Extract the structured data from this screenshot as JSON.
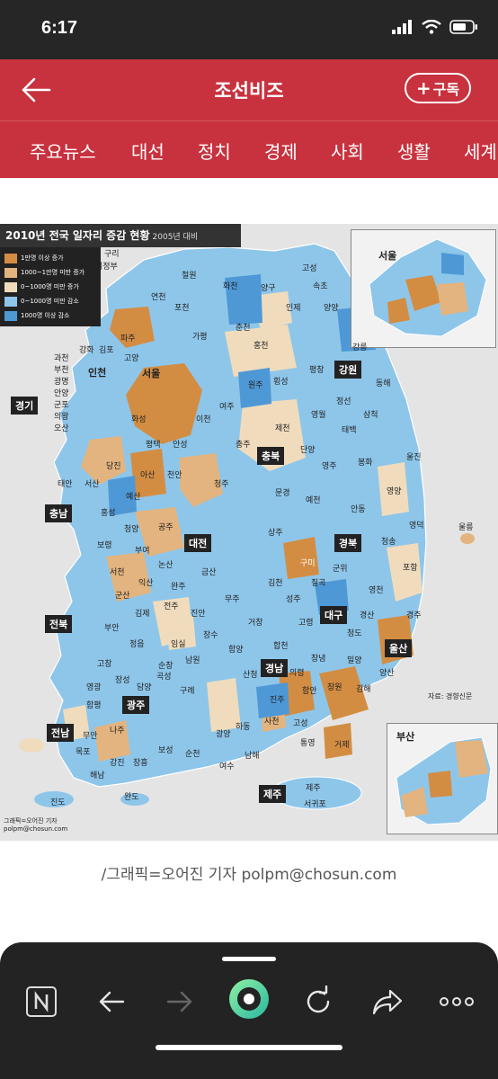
{
  "status": {
    "time": "6:17"
  },
  "header": {
    "title": "조선비즈",
    "subscribe_label": "구독"
  },
  "tabs": [
    "주요뉴스",
    "대선",
    "정치",
    "경제",
    "사회",
    "생활",
    "세계"
  ],
  "map": {
    "title": "2010년 전국 일자리 증감 현황",
    "title_sub": "2005년 대비",
    "legend": [
      {
        "label": "1만명 이상 증가",
        "color": "#d38d43"
      },
      {
        "label": "1000~1만명 미만 증가",
        "color": "#e3b47f"
      },
      {
        "label": "0~1000명 미만 증가",
        "color": "#f0dcbd"
      },
      {
        "label": "0~1000명 미만 감소",
        "color": "#8ec6ea"
      },
      {
        "label": "1000명 이상 감소",
        "color": "#4e98d6"
      }
    ],
    "regions": [
      "경기",
      "강원",
      "충북",
      "충남",
      "대전",
      "경북",
      "대구",
      "전북",
      "경남",
      "울산",
      "광주",
      "전남",
      "부산",
      "제주"
    ],
    "inset_labels": {
      "seoul": "서울",
      "busan": "부산",
      "ulleung": "울릉"
    },
    "city_labels": [
      "구리",
      "의정부",
      "파주",
      "강화",
      "김포",
      "인천",
      "고양",
      "서울",
      "과천",
      "부천",
      "광명",
      "안양",
      "군포",
      "의왕",
      "오산",
      "화성",
      "평택",
      "안성",
      "이천",
      "여주",
      "원주",
      "춘천",
      "홍천",
      "횡성",
      "평창",
      "강릉",
      "정선",
      "삼척",
      "영월",
      "태백",
      "제천",
      "충주",
      "청주",
      "단양",
      "봉화",
      "영주",
      "울진",
      "영양",
      "영덕",
      "안동",
      "예천",
      "문경",
      "상주",
      "김천",
      "구미",
      "칠곡",
      "군위",
      "의성",
      "청송",
      "포항",
      "영천",
      "경주",
      "경산",
      "청도",
      "밀양",
      "양산",
      "김해",
      "창원",
      "진주",
      "사천",
      "통영",
      "거제",
      "고성",
      "하동",
      "남해",
      "광양",
      "순천",
      "여수",
      "보성",
      "장흥",
      "강진",
      "해남",
      "완도",
      "진도",
      "목포",
      "무안",
      "나주",
      "영광",
      "함평",
      "장성",
      "담양",
      "곡성",
      "구례",
      "남원",
      "임실",
      "순창",
      "정읍",
      "고창",
      "부안",
      "김제",
      "익산",
      "군산",
      "전주",
      "완주",
      "진안",
      "무주",
      "장수",
      "금산",
      "논산",
      "공주",
      "부여",
      "서천",
      "보령",
      "홍성",
      "청양",
      "예산",
      "아산",
      "천안",
      "서산",
      "당진",
      "태안",
      "제주",
      "서귀포",
      "연천",
      "포천",
      "가평",
      "철원",
      "화천",
      "양구",
      "인제",
      "고성",
      "속초",
      "양양",
      "동해",
      "거창",
      "함양",
      "산청",
      "합천",
      "의령",
      "함안",
      "창녕",
      "고령",
      "성주"
    ],
    "source": "자료: 경향신문",
    "footer": "그래픽=오어진 기자\npolpm@chosun.com"
  },
  "caption": "/그래픽=오어진 기자 polpm@chosun.com",
  "bottom_nav": [
    "notion-icon",
    "back-icon",
    "forward-icon",
    "home-icon",
    "reload-icon",
    "share-icon",
    "more-icon"
  ]
}
